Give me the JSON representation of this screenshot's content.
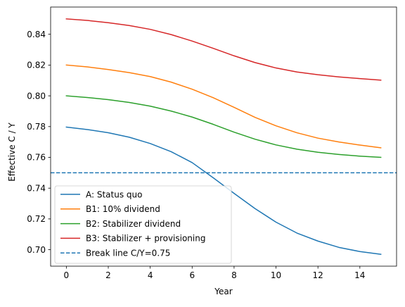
{
  "chart_data": {
    "type": "line",
    "title": "",
    "xlabel": "Year",
    "ylabel": "Effective C / Y",
    "xlim": [
      -0.75,
      15.75
    ],
    "ylim": [
      0.6893,
      0.8577
    ],
    "xticks": [
      0,
      2,
      4,
      6,
      8,
      10,
      12,
      14
    ],
    "xtick_labels": [
      "0",
      "2",
      "4",
      "6",
      "8",
      "10",
      "12",
      "14"
    ],
    "yticks": [
      0.7,
      0.72,
      0.74,
      0.76,
      0.78,
      0.8,
      0.82,
      0.84
    ],
    "ytick_labels": [
      "0.70",
      "0.72",
      "0.74",
      "0.76",
      "0.78",
      "0.80",
      "0.82",
      "0.84"
    ],
    "grid": false,
    "legend_position": "lower-left",
    "x": [
      0,
      1,
      2,
      3,
      4,
      5,
      6,
      7,
      8,
      9,
      10,
      11,
      12,
      13,
      14,
      15
    ],
    "series": [
      {
        "name": "A: Status quo",
        "color": "#1f77b4",
        "style": "solid",
        "values": [
          0.7797,
          0.7781,
          0.776,
          0.7731,
          0.769,
          0.7637,
          0.7566,
          0.7468,
          0.7366,
          0.7267,
          0.7179,
          0.7108,
          0.7056,
          0.7015,
          0.6988,
          0.697
        ]
      },
      {
        "name": "B1: 10% dividend",
        "color": "#ff7f0e",
        "style": "solid",
        "values": [
          0.82,
          0.8188,
          0.8171,
          0.8151,
          0.8125,
          0.8089,
          0.8043,
          0.7988,
          0.7925,
          0.786,
          0.7805,
          0.776,
          0.7725,
          0.77,
          0.768,
          0.7662
        ]
      },
      {
        "name": "B2: Stabilizer dividend",
        "color": "#2ca02c",
        "style": "solid",
        "values": [
          0.8,
          0.7989,
          0.7975,
          0.7957,
          0.7933,
          0.7901,
          0.7862,
          0.7815,
          0.7764,
          0.7718,
          0.7681,
          0.7653,
          0.7633,
          0.7619,
          0.7608,
          0.76
        ]
      },
      {
        "name": "B3: Stabilizer + provisioning",
        "color": "#d62728",
        "style": "solid",
        "values": [
          0.85,
          0.849,
          0.8475,
          0.8457,
          0.8432,
          0.8398,
          0.8356,
          0.8309,
          0.826,
          0.8216,
          0.8181,
          0.8155,
          0.8137,
          0.8123,
          0.8112,
          0.8102
        ]
      },
      {
        "name": "Break line C/Y=0.75",
        "color": "#1f77b4",
        "style": "dashed",
        "hline": 0.75
      }
    ]
  }
}
